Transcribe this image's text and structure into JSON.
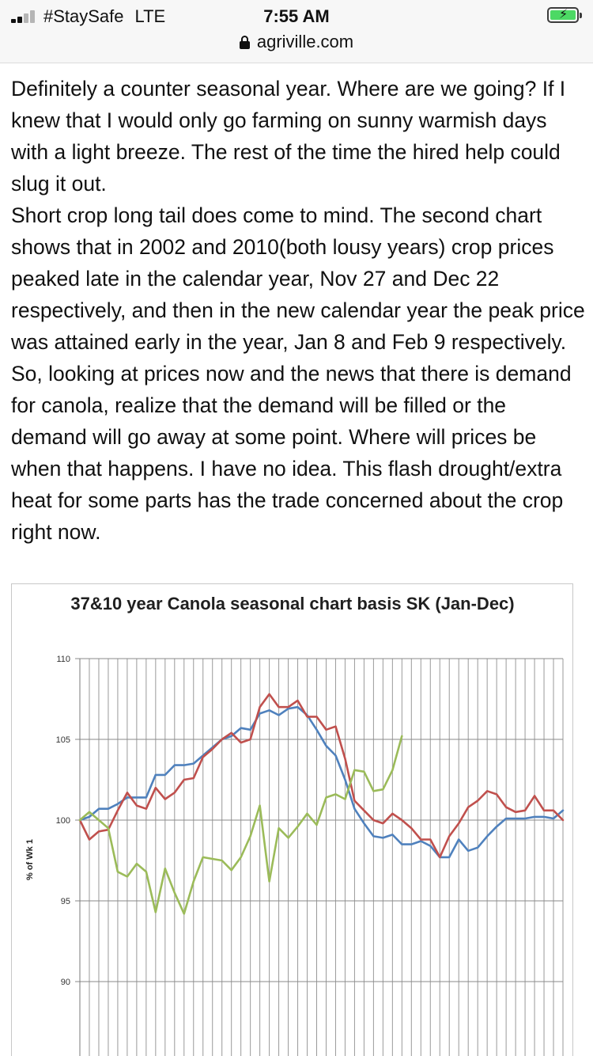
{
  "status_bar": {
    "carrier": "#StaySafe",
    "network": "LTE",
    "time": "7:55 AM",
    "battery_color": "#4cd964",
    "battery_icon": "charging-battery-icon",
    "signal_icon": "signal-strength-icon"
  },
  "browser": {
    "url": "agriville.com",
    "lock_icon": "lock-icon"
  },
  "post": {
    "paragraphs": [
      "Definitely a counter seasonal year. Where are we going? If I knew that I would only go farming on sunny warmish days with a light breeze. The rest of the time the hired help could slug it out.",
      "Short crop long tail does come to mind. The second chart shows that in 2002 and 2010(both lousy years) crop prices peaked late in the calendar year, Nov 27 and Dec 22 respectively, and then in the new calendar year the peak price was attained early in the year, Jan 8 and Feb 9 respectively.",
      "So, looking at prices now and the news that there is demand for canola, realize that the demand will be filled or the demand will go away at some point. Where will prices be when that happens. I have no idea. This flash drought/extra heat for some parts has the trade concerned about the crop right now."
    ]
  },
  "chart_data": {
    "type": "line",
    "title": "37&10 year Canola seasonal chart basis SK (Jan-Dec)",
    "ylabel": "% of Wk 1",
    "xlabel": "",
    "ylim": [
      85,
      110
    ],
    "yticks": [
      110,
      105,
      100,
      95,
      90
    ],
    "grid": true,
    "weeks": 52,
    "series": [
      {
        "color": "#4f81bd",
        "values": [
          100,
          100.2,
          100.7,
          100.7,
          101.0,
          101.4,
          101.4,
          101.4,
          102.8,
          102.8,
          103.4,
          103.4,
          103.5,
          104.0,
          104.5,
          105.0,
          105.2,
          105.7,
          105.6,
          106.6,
          106.8,
          106.5,
          106.9,
          107.0,
          106.5,
          105.6,
          104.6,
          104.0,
          102.5,
          100.7,
          99.8,
          99.0,
          98.9,
          99.1,
          98.5,
          98.5,
          98.7,
          98.4,
          97.7,
          97.7,
          98.8,
          98.1,
          98.3,
          99.0,
          99.6,
          100.1,
          100.1,
          100.1,
          100.2,
          100.2,
          100.1,
          100.6
        ]
      },
      {
        "color": "#c0504d",
        "values": [
          100,
          98.8,
          99.3,
          99.4,
          100.6,
          101.7,
          100.9,
          100.7,
          102.0,
          101.3,
          101.7,
          102.5,
          102.6,
          103.9,
          104.4,
          105.0,
          105.4,
          104.8,
          105.0,
          107.0,
          107.8,
          107.0,
          107.0,
          107.4,
          106.4,
          106.4,
          105.6,
          105.8,
          103.8,
          101.2,
          100.6,
          100.0,
          99.8,
          100.4,
          100.0,
          99.5,
          98.8,
          98.8,
          97.7,
          99.0,
          99.8,
          100.8,
          101.2,
          101.8,
          101.6,
          100.8,
          100.5,
          100.6,
          101.5,
          100.6,
          100.6,
          100.0
        ]
      },
      {
        "color": "#9bbb59",
        "values": [
          100,
          100.5,
          100.0,
          99.5,
          96.8,
          96.5,
          97.3,
          96.8,
          94.3,
          97.0,
          95.5,
          94.2,
          96.2,
          97.7,
          97.6,
          97.5,
          96.9,
          97.7,
          99.0,
          100.9,
          96.2,
          99.5,
          98.9,
          99.6,
          100.4,
          99.7,
          101.4,
          101.6,
          101.3,
          103.1,
          103.0,
          101.8,
          101.9,
          103.1,
          105.2
        ]
      }
    ]
  }
}
